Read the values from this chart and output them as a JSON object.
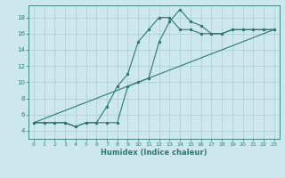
{
  "xlabel": "Humidex (Indice chaleur)",
  "bg_color": "#cce8ec",
  "grid_color": "#aacccc",
  "line_color": "#2d7a6e",
  "xlim": [
    -0.5,
    23.5
  ],
  "ylim": [
    3.0,
    19.5
  ],
  "xticks": [
    0,
    1,
    2,
    3,
    4,
    5,
    6,
    7,
    8,
    9,
    10,
    11,
    12,
    13,
    14,
    15,
    16,
    17,
    18,
    19,
    20,
    21,
    22,
    23
  ],
  "yticks": [
    4,
    6,
    8,
    10,
    12,
    14,
    16,
    18
  ],
  "line1_x": [
    0,
    1,
    2,
    3,
    4,
    5,
    6,
    7,
    8,
    9,
    10,
    11,
    12,
    13,
    14,
    15,
    16,
    17,
    18,
    19,
    20,
    21,
    22,
    23
  ],
  "line1_y": [
    5,
    5,
    5,
    5,
    4.5,
    5,
    5,
    5,
    5,
    9.5,
    10,
    10.5,
    15,
    17.5,
    19,
    17.5,
    17,
    16,
    16,
    16.5,
    16.5,
    16.5,
    16.5,
    16.5
  ],
  "line2_x": [
    0,
    1,
    2,
    3,
    4,
    5,
    6,
    7,
    8,
    9,
    10,
    11,
    12,
    13,
    14,
    15,
    16,
    17,
    18,
    19,
    20,
    21,
    22,
    23
  ],
  "line2_y": [
    5,
    5,
    5,
    5,
    4.5,
    5,
    5,
    7,
    9.5,
    11,
    15,
    16.5,
    18,
    18,
    16.5,
    16.5,
    16,
    16,
    16,
    16.5,
    16.5,
    16.5,
    16.5,
    16.5
  ],
  "line3_x": [
    0,
    23
  ],
  "line3_y": [
    5,
    16.5
  ]
}
